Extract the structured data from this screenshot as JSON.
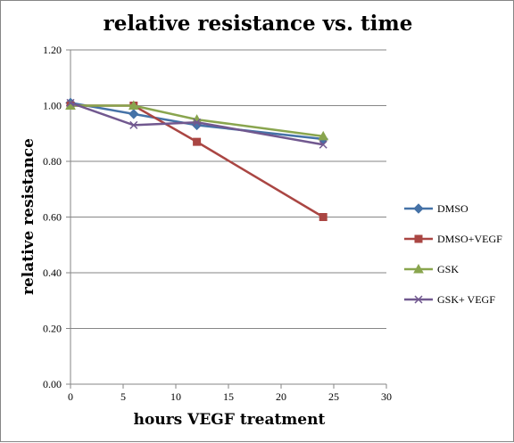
{
  "chart_data": {
    "type": "line",
    "title": "relative resistance vs. time",
    "xlabel": "hours VEGF treatment",
    "ylabel": "relative resistance",
    "xlim": [
      0,
      30
    ],
    "ylim": [
      0,
      1.2
    ],
    "xticks": [
      0,
      5,
      10,
      15,
      20,
      25,
      30
    ],
    "yticks": [
      "0.00",
      "0.20",
      "0.40",
      "0.60",
      "0.80",
      "1.00",
      "1.20"
    ],
    "grid": "horizontal major gridlines",
    "legend_position": "right",
    "series": [
      {
        "name": "DMSO",
        "color": "#4572A7",
        "marker": "diamond",
        "x": [
          0,
          6,
          12,
          24
        ],
        "y": [
          1.01,
          0.97,
          0.93,
          0.88
        ]
      },
      {
        "name": "DMSO+VEGF",
        "color": "#AA4643",
        "marker": "square",
        "x": [
          0,
          6,
          12,
          24
        ],
        "y": [
          1.0,
          1.0,
          0.87,
          0.6
        ]
      },
      {
        "name": "GSK",
        "color": "#89A54E",
        "marker": "triangle",
        "x": [
          0,
          6,
          12,
          24
        ],
        "y": [
          1.0,
          1.0,
          0.95,
          0.89
        ]
      },
      {
        "name": "GSK+ VEGF",
        "color": "#71588F",
        "marker": "x",
        "x": [
          0,
          6,
          12,
          24
        ],
        "y": [
          1.01,
          0.93,
          0.94,
          0.86
        ]
      }
    ]
  }
}
